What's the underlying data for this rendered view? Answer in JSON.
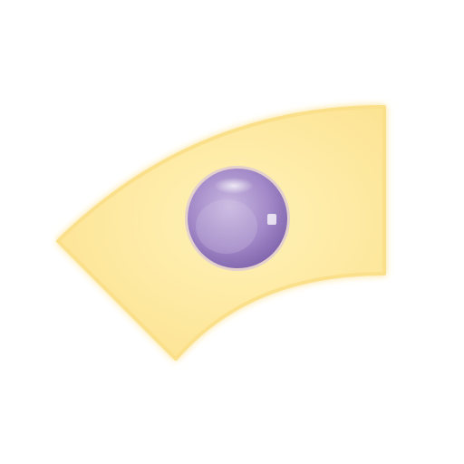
{
  "figure": {
    "colors": {
      "background": "#ffffff",
      "cell_fill_light": "#fff2b8",
      "cell_fill": "#fde69a",
      "cell_edge": "#fbe08c",
      "nucleus_light": "#c9b8e0",
      "nucleus_mid": "#a48bc9",
      "nucleus_dark": "#7a5fa8",
      "nucleus_rim": "#cdb9ea",
      "highlight": "#ffffff"
    }
  }
}
